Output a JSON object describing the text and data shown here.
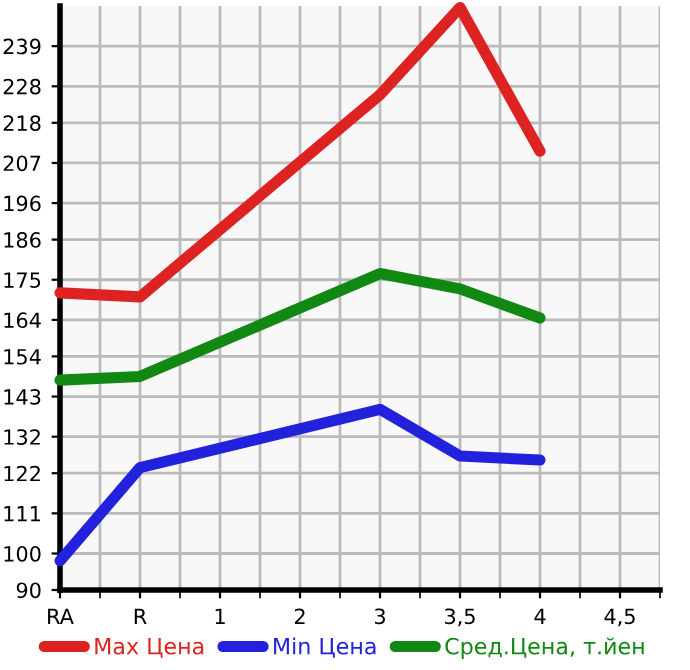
{
  "chart_data": {
    "type": "line",
    "categories": [
      "RA",
      "R",
      "1",
      "2",
      "3",
      "3,5",
      "4",
      "4,5"
    ],
    "series": [
      {
        "name": "Max Цена",
        "color": "#dd2222",
        "values": [
          171.4,
          170.3,
          null,
          null,
          225.7,
          249.6,
          210.2,
          null
        ]
      },
      {
        "name": "Min Цена",
        "color": "#2222dd",
        "values": [
          98,
          123.5,
          null,
          null,
          139.5,
          126.7,
          125.6,
          null
        ]
      },
      {
        "name": "Сред.Цена, т.йен",
        "color": "#118811",
        "values": [
          147.5,
          148.5,
          null,
          null,
          176.7,
          172.5,
          164.5,
          null
        ]
      }
    ],
    "ylim": [
      90,
      250
    ],
    "yticks": [
      90,
      100,
      111,
      122,
      132,
      143,
      154,
      164,
      175,
      186,
      196,
      207,
      218,
      228,
      239
    ],
    "grid": true,
    "legend": "bottom",
    "marker": "none",
    "line_style": "solid"
  }
}
